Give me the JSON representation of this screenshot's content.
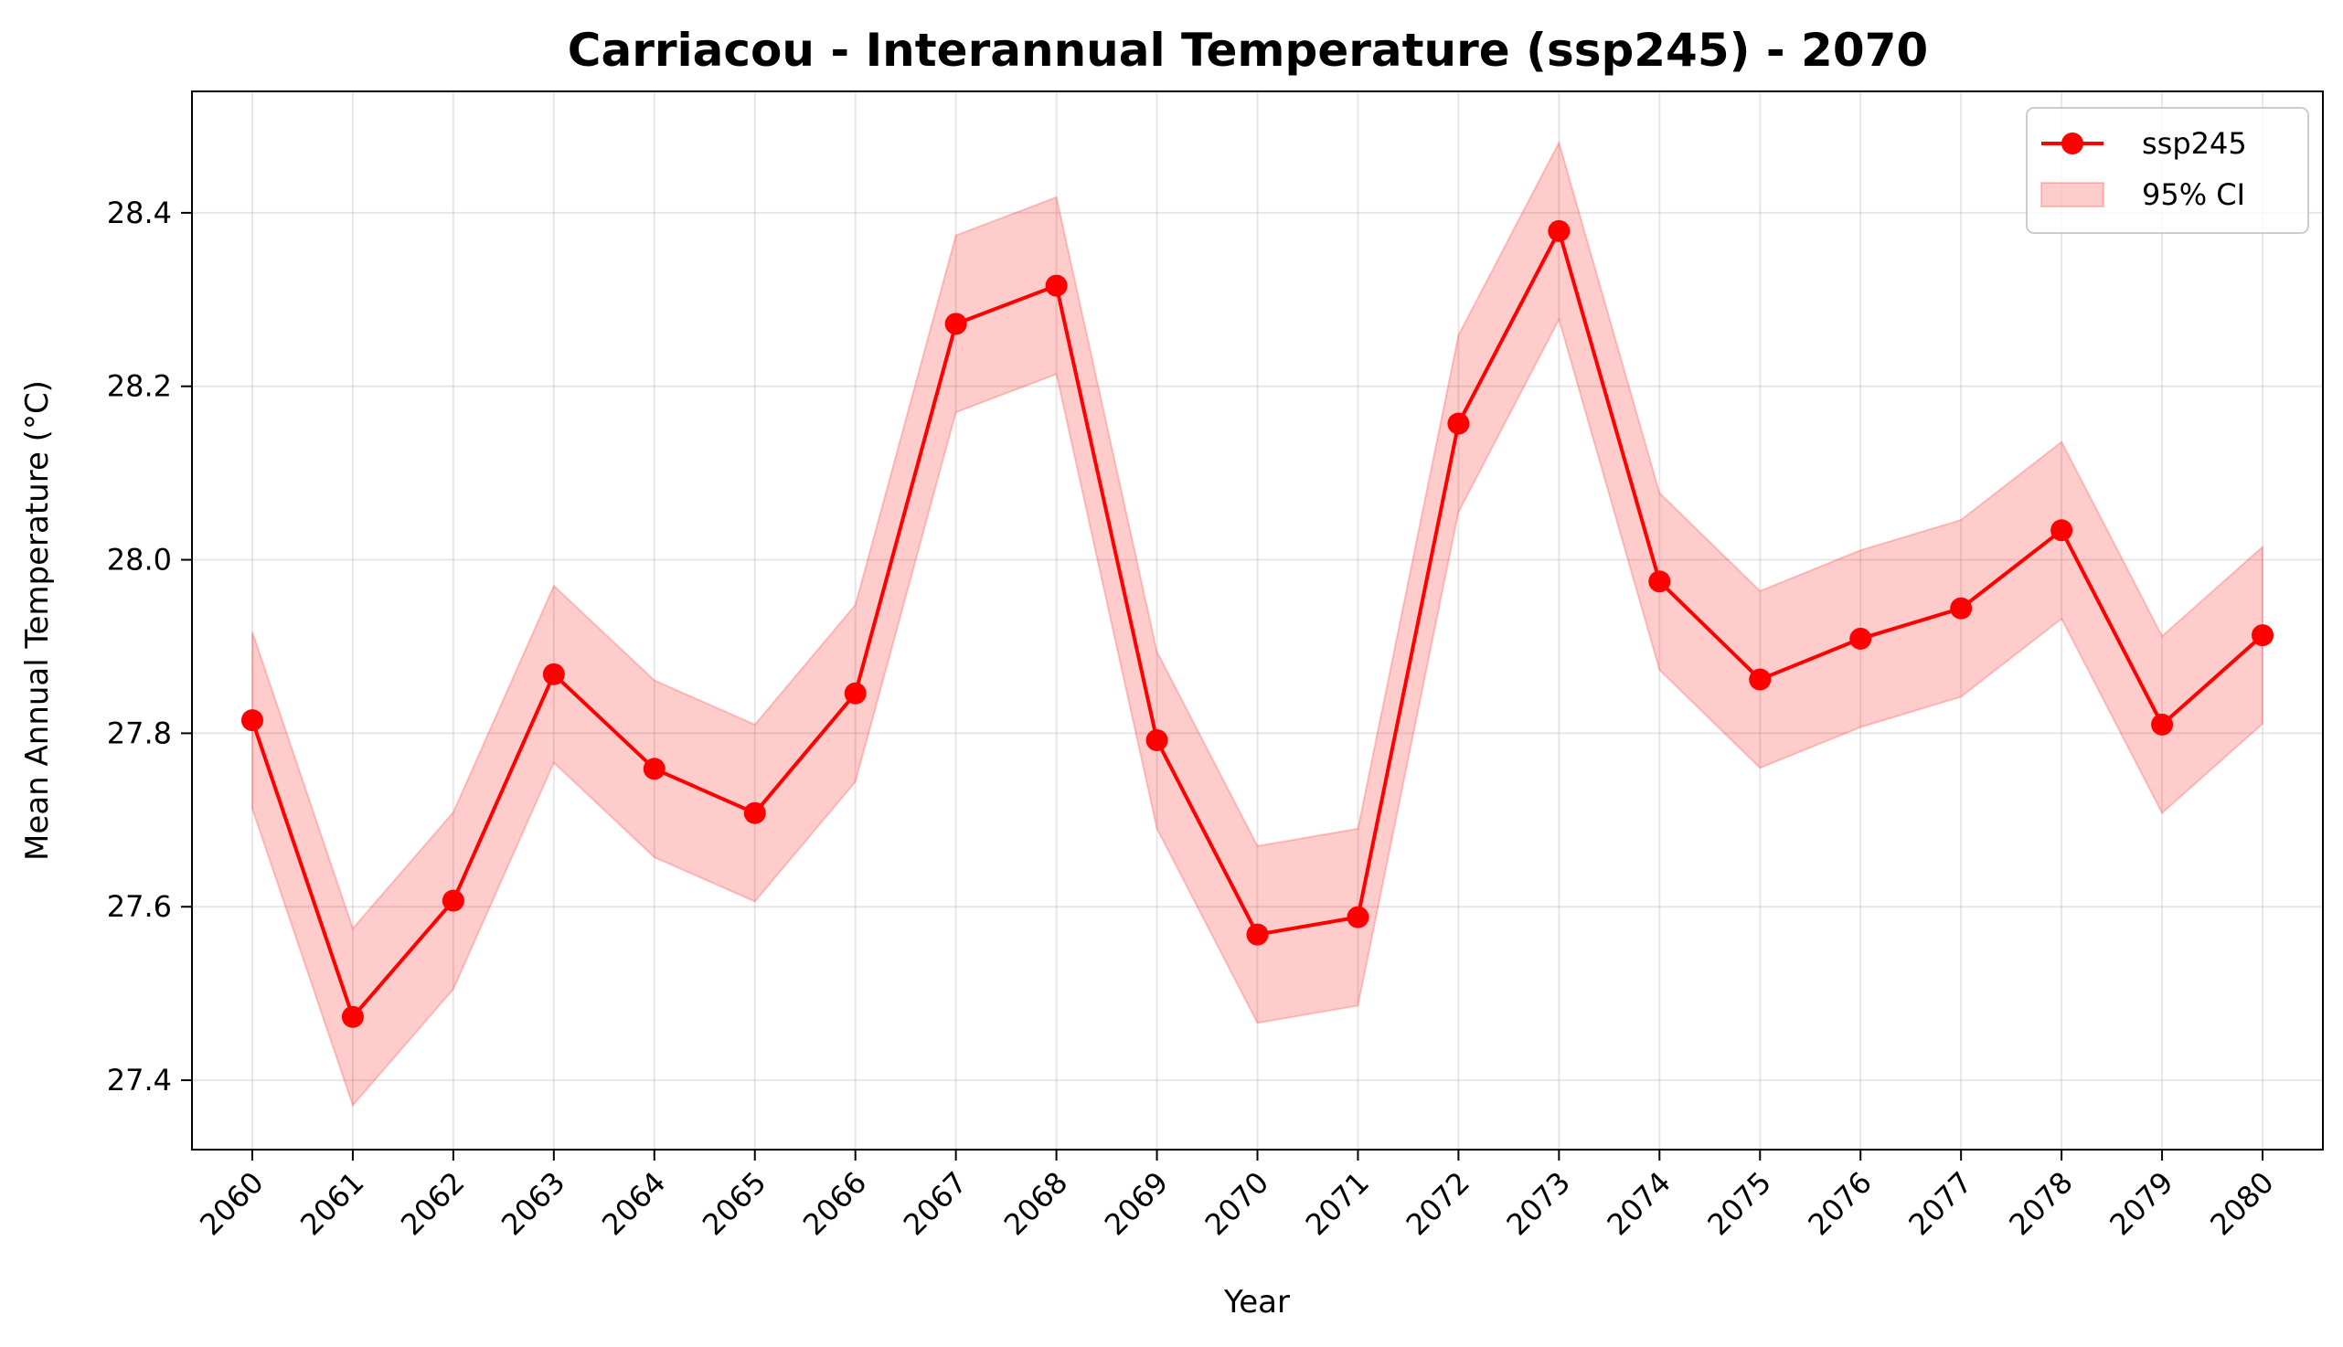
{
  "chart_data": {
    "type": "line",
    "title": "Carriacou - Interannual Temperature (ssp245) - 2070",
    "xlabel": "Year",
    "ylabel": "Mean Annual Temperature (°C)",
    "x": [
      2060,
      2061,
      2062,
      2063,
      2064,
      2065,
      2066,
      2067,
      2068,
      2069,
      2070,
      2071,
      2072,
      2073,
      2074,
      2075,
      2076,
      2077,
      2078,
      2079,
      2080
    ],
    "x_tick_labels": [
      "2060",
      "2061",
      "2062",
      "2063",
      "2064",
      "2065",
      "2066",
      "2067",
      "2068",
      "2069",
      "2070",
      "2071",
      "2072",
      "2073",
      "2074",
      "2075",
      "2076",
      "2077",
      "2078",
      "2079",
      "2080"
    ],
    "y_ticks": [
      27.4,
      27.6,
      27.8,
      28.0,
      28.2,
      28.4
    ],
    "y_tick_labels": [
      "27.4",
      "27.6",
      "27.8",
      "28.0",
      "28.2",
      "28.4"
    ],
    "ylim": [
      27.32,
      28.54
    ],
    "xlim": [
      2059.4,
      2080.6
    ],
    "grid": true,
    "legend_position": "top-right",
    "series": [
      {
        "name": "ssp245",
        "color": "#ff0000",
        "marker": "circle",
        "values": [
          27.815,
          27.473,
          27.607,
          27.868,
          27.759,
          27.708,
          27.846,
          28.272,
          28.316,
          27.792,
          27.568,
          27.588,
          28.157,
          28.379,
          27.975,
          27.862,
          27.909,
          27.944,
          28.034,
          27.81,
          27.913
        ]
      }
    ],
    "confidence_band": {
      "name": "95% CI",
      "color": "#ff0000",
      "opacity": 0.2,
      "lower": [
        27.713,
        27.371,
        27.505,
        27.766,
        27.657,
        27.606,
        27.744,
        28.17,
        28.214,
        27.69,
        27.466,
        27.486,
        28.055,
        28.277,
        27.873,
        27.76,
        27.807,
        27.842,
        27.932,
        27.708,
        27.811
      ],
      "upper": [
        27.917,
        27.575,
        27.709,
        27.97,
        27.861,
        27.81,
        27.948,
        28.374,
        28.418,
        27.894,
        27.67,
        27.69,
        28.259,
        28.481,
        28.077,
        27.964,
        28.011,
        28.046,
        28.136,
        27.912,
        28.015
      ]
    },
    "legend": [
      {
        "label": "ssp245",
        "kind": "line-marker"
      },
      {
        "label": "95% CI",
        "kind": "band"
      }
    ]
  }
}
